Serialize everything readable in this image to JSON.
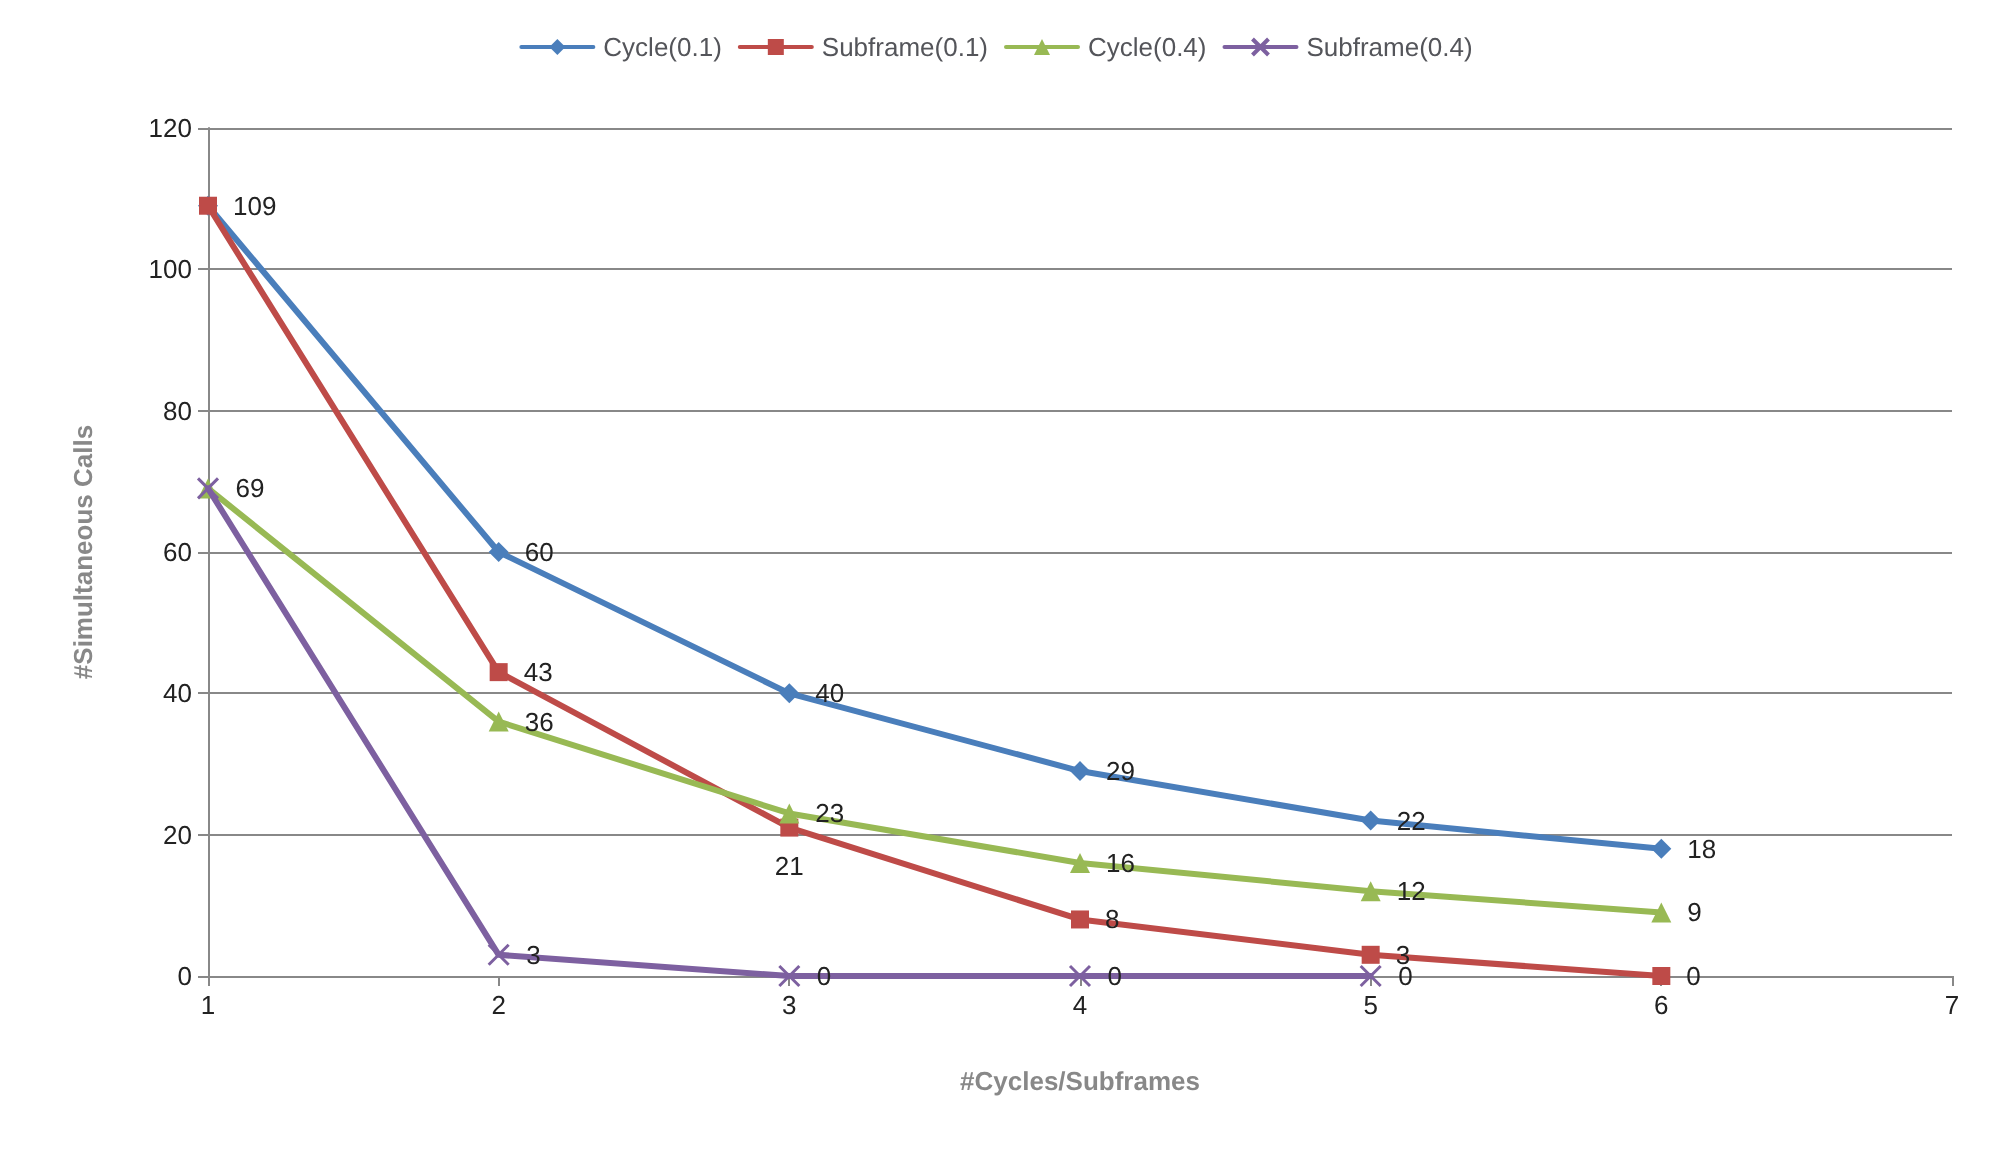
{
  "chart_data": {
    "type": "line",
    "xlabel": "#Cycles/Subframes",
    "ylabel": "#Simultaneous Calls",
    "x": [
      1,
      2,
      3,
      4,
      5,
      6
    ],
    "xlim": [
      1,
      7
    ],
    "xticks": [
      1,
      2,
      3,
      4,
      5,
      6,
      7
    ],
    "ylim": [
      0,
      120
    ],
    "yticks": [
      0,
      20,
      40,
      60,
      80,
      100,
      120
    ],
    "grid": "y",
    "legend": "top",
    "series": [
      {
        "name": "Cycle(0.1)",
        "color": "#4a7ebb",
        "marker": "diamond",
        "values": [
          109,
          60,
          40,
          29,
          22,
          18
        ],
        "value_labels": [
          null,
          "60",
          "40",
          "29",
          "22",
          "18"
        ]
      },
      {
        "name": "Subframe(0.1)",
        "color": "#be4b48",
        "marker": "square",
        "values": [
          109,
          43,
          21,
          8,
          3,
          0
        ],
        "value_labels": [
          "109",
          "43",
          "21",
          "8",
          "3",
          "0"
        ]
      },
      {
        "name": "Cycle(0.4)",
        "color": "#98b954",
        "marker": "triangle",
        "values": [
          69,
          36,
          23,
          16,
          12,
          9
        ],
        "value_labels": [
          null,
          "36",
          "23",
          "16",
          "12",
          "9"
        ]
      },
      {
        "name": "Subframe(0.4)",
        "color": "#7d60a0",
        "marker": "cross",
        "values": [
          69,
          3,
          0,
          0,
          0,
          null
        ],
        "value_labels": [
          "69",
          "3",
          "0",
          "0",
          "0",
          null
        ]
      }
    ]
  }
}
